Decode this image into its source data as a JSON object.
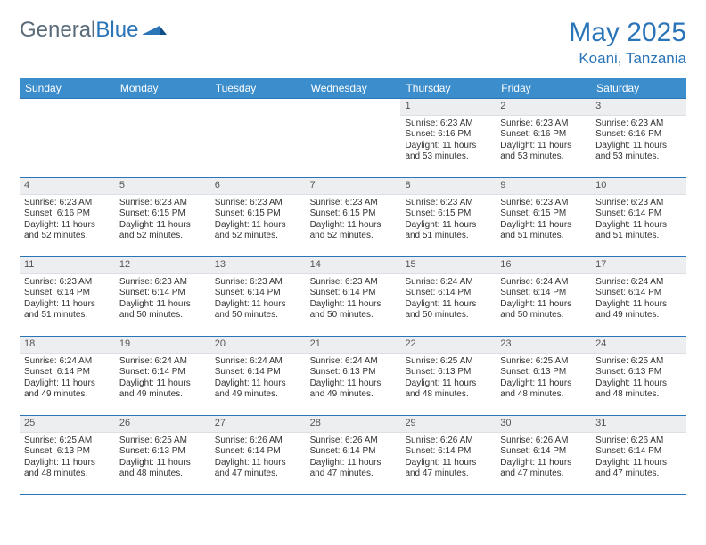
{
  "brand": {
    "part1": "General",
    "part2": "Blue"
  },
  "title": "May 2025",
  "location": "Koani, Tanzania",
  "colors": {
    "accent": "#2a74b8",
    "header_bg": "#3c8dcc",
    "daynum_bg": "#eceef0",
    "text": "#333333",
    "brand_grey": "#5a6b7a"
  },
  "weekdays": [
    "Sunday",
    "Monday",
    "Tuesday",
    "Wednesday",
    "Thursday",
    "Friday",
    "Saturday"
  ],
  "weeks": [
    [
      {
        "n": "",
        "sr": "",
        "ss": "",
        "dl": ""
      },
      {
        "n": "",
        "sr": "",
        "ss": "",
        "dl": ""
      },
      {
        "n": "",
        "sr": "",
        "ss": "",
        "dl": ""
      },
      {
        "n": "",
        "sr": "",
        "ss": "",
        "dl": ""
      },
      {
        "n": "1",
        "sr": "Sunrise: 6:23 AM",
        "ss": "Sunset: 6:16 PM",
        "dl": "Daylight: 11 hours and 53 minutes."
      },
      {
        "n": "2",
        "sr": "Sunrise: 6:23 AM",
        "ss": "Sunset: 6:16 PM",
        "dl": "Daylight: 11 hours and 53 minutes."
      },
      {
        "n": "3",
        "sr": "Sunrise: 6:23 AM",
        "ss": "Sunset: 6:16 PM",
        "dl": "Daylight: 11 hours and 53 minutes."
      }
    ],
    [
      {
        "n": "4",
        "sr": "Sunrise: 6:23 AM",
        "ss": "Sunset: 6:16 PM",
        "dl": "Daylight: 11 hours and 52 minutes."
      },
      {
        "n": "5",
        "sr": "Sunrise: 6:23 AM",
        "ss": "Sunset: 6:15 PM",
        "dl": "Daylight: 11 hours and 52 minutes."
      },
      {
        "n": "6",
        "sr": "Sunrise: 6:23 AM",
        "ss": "Sunset: 6:15 PM",
        "dl": "Daylight: 11 hours and 52 minutes."
      },
      {
        "n": "7",
        "sr": "Sunrise: 6:23 AM",
        "ss": "Sunset: 6:15 PM",
        "dl": "Daylight: 11 hours and 52 minutes."
      },
      {
        "n": "8",
        "sr": "Sunrise: 6:23 AM",
        "ss": "Sunset: 6:15 PM",
        "dl": "Daylight: 11 hours and 51 minutes."
      },
      {
        "n": "9",
        "sr": "Sunrise: 6:23 AM",
        "ss": "Sunset: 6:15 PM",
        "dl": "Daylight: 11 hours and 51 minutes."
      },
      {
        "n": "10",
        "sr": "Sunrise: 6:23 AM",
        "ss": "Sunset: 6:14 PM",
        "dl": "Daylight: 11 hours and 51 minutes."
      }
    ],
    [
      {
        "n": "11",
        "sr": "Sunrise: 6:23 AM",
        "ss": "Sunset: 6:14 PM",
        "dl": "Daylight: 11 hours and 51 minutes."
      },
      {
        "n": "12",
        "sr": "Sunrise: 6:23 AM",
        "ss": "Sunset: 6:14 PM",
        "dl": "Daylight: 11 hours and 50 minutes."
      },
      {
        "n": "13",
        "sr": "Sunrise: 6:23 AM",
        "ss": "Sunset: 6:14 PM",
        "dl": "Daylight: 11 hours and 50 minutes."
      },
      {
        "n": "14",
        "sr": "Sunrise: 6:23 AM",
        "ss": "Sunset: 6:14 PM",
        "dl": "Daylight: 11 hours and 50 minutes."
      },
      {
        "n": "15",
        "sr": "Sunrise: 6:24 AM",
        "ss": "Sunset: 6:14 PM",
        "dl": "Daylight: 11 hours and 50 minutes."
      },
      {
        "n": "16",
        "sr": "Sunrise: 6:24 AM",
        "ss": "Sunset: 6:14 PM",
        "dl": "Daylight: 11 hours and 50 minutes."
      },
      {
        "n": "17",
        "sr": "Sunrise: 6:24 AM",
        "ss": "Sunset: 6:14 PM",
        "dl": "Daylight: 11 hours and 49 minutes."
      }
    ],
    [
      {
        "n": "18",
        "sr": "Sunrise: 6:24 AM",
        "ss": "Sunset: 6:14 PM",
        "dl": "Daylight: 11 hours and 49 minutes."
      },
      {
        "n": "19",
        "sr": "Sunrise: 6:24 AM",
        "ss": "Sunset: 6:14 PM",
        "dl": "Daylight: 11 hours and 49 minutes."
      },
      {
        "n": "20",
        "sr": "Sunrise: 6:24 AM",
        "ss": "Sunset: 6:14 PM",
        "dl": "Daylight: 11 hours and 49 minutes."
      },
      {
        "n": "21",
        "sr": "Sunrise: 6:24 AM",
        "ss": "Sunset: 6:13 PM",
        "dl": "Daylight: 11 hours and 49 minutes."
      },
      {
        "n": "22",
        "sr": "Sunrise: 6:25 AM",
        "ss": "Sunset: 6:13 PM",
        "dl": "Daylight: 11 hours and 48 minutes."
      },
      {
        "n": "23",
        "sr": "Sunrise: 6:25 AM",
        "ss": "Sunset: 6:13 PM",
        "dl": "Daylight: 11 hours and 48 minutes."
      },
      {
        "n": "24",
        "sr": "Sunrise: 6:25 AM",
        "ss": "Sunset: 6:13 PM",
        "dl": "Daylight: 11 hours and 48 minutes."
      }
    ],
    [
      {
        "n": "25",
        "sr": "Sunrise: 6:25 AM",
        "ss": "Sunset: 6:13 PM",
        "dl": "Daylight: 11 hours and 48 minutes."
      },
      {
        "n": "26",
        "sr": "Sunrise: 6:25 AM",
        "ss": "Sunset: 6:13 PM",
        "dl": "Daylight: 11 hours and 48 minutes."
      },
      {
        "n": "27",
        "sr": "Sunrise: 6:26 AM",
        "ss": "Sunset: 6:14 PM",
        "dl": "Daylight: 11 hours and 47 minutes."
      },
      {
        "n": "28",
        "sr": "Sunrise: 6:26 AM",
        "ss": "Sunset: 6:14 PM",
        "dl": "Daylight: 11 hours and 47 minutes."
      },
      {
        "n": "29",
        "sr": "Sunrise: 6:26 AM",
        "ss": "Sunset: 6:14 PM",
        "dl": "Daylight: 11 hours and 47 minutes."
      },
      {
        "n": "30",
        "sr": "Sunrise: 6:26 AM",
        "ss": "Sunset: 6:14 PM",
        "dl": "Daylight: 11 hours and 47 minutes."
      },
      {
        "n": "31",
        "sr": "Sunrise: 6:26 AM",
        "ss": "Sunset: 6:14 PM",
        "dl": "Daylight: 11 hours and 47 minutes."
      }
    ]
  ]
}
